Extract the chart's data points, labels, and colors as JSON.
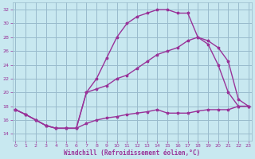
{
  "xlabel": "Windchill (Refroidissement éolien,°C)",
  "bg_color": "#c8e8f0",
  "grid_color": "#99bbcc",
  "line_color": "#993399",
  "xlim_min": -0.3,
  "xlim_max": 23.3,
  "ylim_min": 13,
  "ylim_max": 33,
  "yticks": [
    14,
    16,
    18,
    20,
    22,
    24,
    26,
    28,
    30,
    32
  ],
  "xticks": [
    0,
    1,
    2,
    3,
    4,
    5,
    6,
    7,
    8,
    9,
    10,
    11,
    12,
    13,
    14,
    15,
    16,
    17,
    18,
    19,
    20,
    21,
    22,
    23
  ],
  "curve_bottom_x": [
    0,
    1,
    2,
    3,
    4,
    5,
    6,
    7,
    8,
    9,
    10,
    11,
    12,
    13,
    14,
    15,
    16,
    17,
    18,
    19,
    20,
    21,
    22,
    23
  ],
  "curve_bottom_y": [
    17.5,
    16.8,
    16.0,
    15.2,
    14.8,
    14.8,
    14.8,
    15.5,
    16.0,
    16.3,
    16.5,
    16.8,
    17.0,
    17.2,
    17.5,
    17.0,
    17.0,
    17.0,
    17.3,
    17.5,
    17.5,
    17.5,
    18.0,
    18.0
  ],
  "curve_top_x": [
    0,
    1,
    2,
    3,
    4,
    5,
    6,
    7,
    8,
    9,
    10,
    11,
    12,
    13,
    14,
    15,
    16,
    17,
    18,
    19,
    20,
    21,
    22,
    23
  ],
  "curve_top_y": [
    17.5,
    16.8,
    16.0,
    15.2,
    14.8,
    14.8,
    14.8,
    20.0,
    22.0,
    25.0,
    28.0,
    30.0,
    31.0,
    31.5,
    32.0,
    32.0,
    31.5,
    31.5,
    28.0,
    27.0,
    24.0,
    20.0,
    18.0,
    18.0
  ],
  "curve_mid_x": [
    0,
    1,
    2,
    3,
    4,
    5,
    6,
    7,
    8,
    9,
    10,
    11,
    12,
    13,
    14,
    15,
    16,
    17,
    18,
    19,
    20,
    21,
    22,
    23
  ],
  "curve_mid_y": [
    17.5,
    16.8,
    16.0,
    15.2,
    14.8,
    14.8,
    14.8,
    20.0,
    20.5,
    21.0,
    22.0,
    22.5,
    23.5,
    24.5,
    25.5,
    26.0,
    26.5,
    27.5,
    28.0,
    27.5,
    26.5,
    24.5,
    19.0,
    18.0
  ]
}
